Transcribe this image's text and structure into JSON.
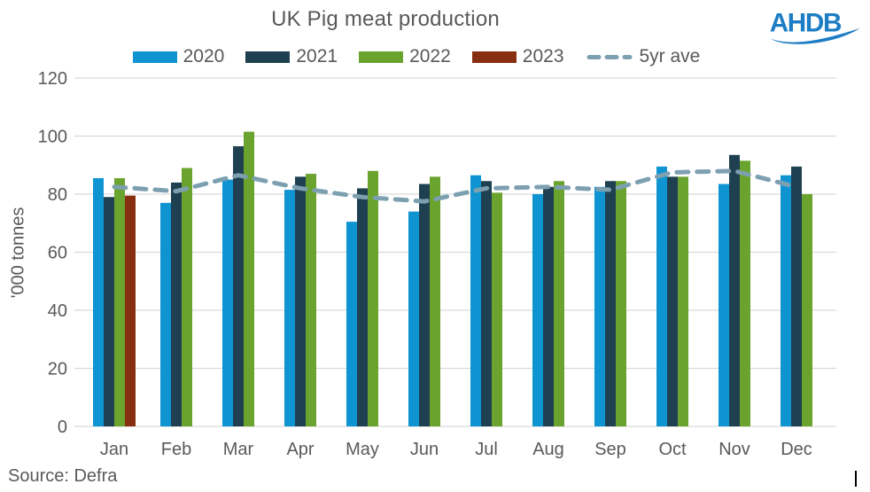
{
  "title": "UK Pig meat production",
  "logo_text": "AHDB",
  "source": "Source: Defra",
  "colors": {
    "title_text": "#595959",
    "axis_text": "#595959",
    "grid": "#d9d9d9",
    "logo_blue": "#1d7dc4",
    "cursor": "#000000"
  },
  "chart_data": {
    "type": "bar",
    "title": "UK Pig meat production",
    "xlabel": "",
    "ylabel": "'000 tonnes",
    "ylim": [
      0,
      120
    ],
    "y_ticks": [
      0,
      20,
      40,
      60,
      80,
      100,
      120
    ],
    "grid": true,
    "legend_position": "top",
    "categories": [
      "Jan",
      "Feb",
      "Mar",
      "Apr",
      "May",
      "Jun",
      "Jul",
      "Aug",
      "Sep",
      "Oct",
      "Nov",
      "Dec"
    ],
    "series": [
      {
        "name": "2020",
        "type": "bar",
        "color": "#0f94d2",
        "values": [
          85.5,
          77,
          85,
          81.5,
          70.5,
          74,
          86.5,
          80,
          82.5,
          89.5,
          83.5,
          86.5
        ]
      },
      {
        "name": "2021",
        "type": "bar",
        "color": "#1f4051",
        "values": [
          79,
          84,
          96.5,
          86,
          82,
          83.5,
          84.5,
          82.5,
          84.5,
          86,
          93.5,
          89.5
        ]
      },
      {
        "name": "2022",
        "type": "bar",
        "color": "#6aa32d",
        "values": [
          85.5,
          89,
          101.5,
          87,
          88,
          86,
          80.5,
          84.5,
          84.5,
          86,
          91.5,
          80
        ]
      },
      {
        "name": "2023",
        "type": "bar",
        "color": "#892f11",
        "values": [
          79.5,
          null,
          null,
          null,
          null,
          null,
          null,
          null,
          null,
          null,
          null,
          null
        ]
      },
      {
        "name": "5yr ave",
        "type": "line",
        "dashed": true,
        "color": "#7da0b0",
        "values": [
          82.5,
          81,
          86.5,
          82,
          79,
          77.5,
          82,
          82.5,
          81.5,
          87.5,
          88,
          82.5
        ]
      }
    ]
  }
}
